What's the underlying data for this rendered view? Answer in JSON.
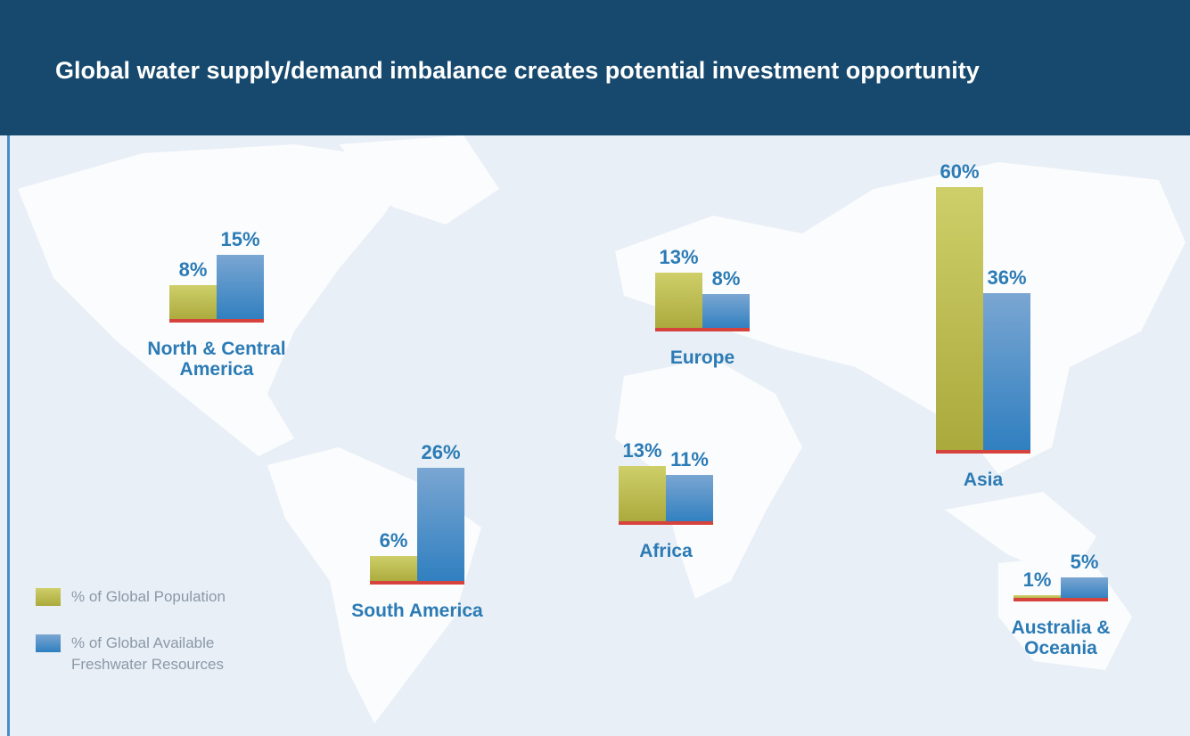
{
  "chart_data": {
    "type": "bar",
    "title": "Global water supply/demand imbalance creates potential investment opportunity",
    "categories": [
      "North & Central America",
      "Europe",
      "Asia",
      "South America",
      "Africa",
      "Australia & Oceania"
    ],
    "series": [
      {
        "name": "% of Global Population",
        "color": "#bfbf4e",
        "values": [
          8,
          13,
          60,
          6,
          13,
          1
        ],
        "value_labels": [
          "8%",
          "13%",
          "60%",
          "6%",
          "13%",
          "1%"
        ]
      },
      {
        "name": "% of Global Available Freshwater Resources",
        "color": "#4a8cc6",
        "values": [
          15,
          8,
          36,
          26,
          11,
          5
        ],
        "value_labels": [
          "15%",
          "8%",
          "36%",
          "26%",
          "11%",
          "5%"
        ]
      }
    ]
  }
}
